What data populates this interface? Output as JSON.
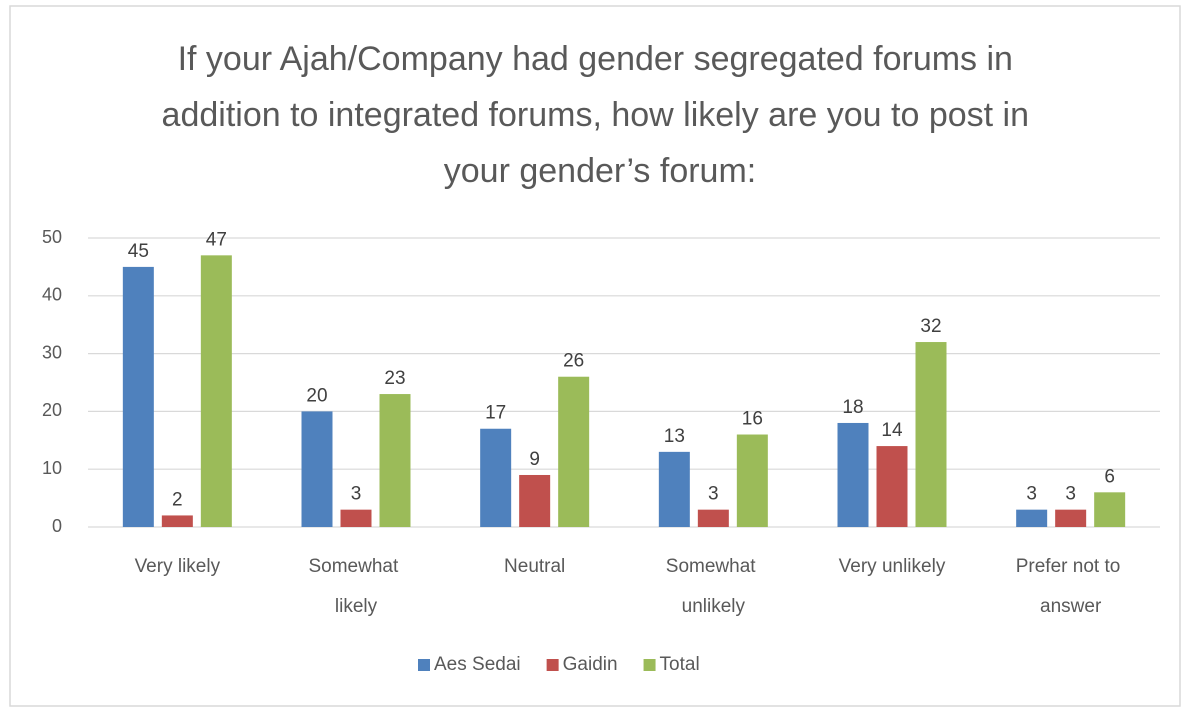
{
  "chart_data": {
    "type": "bar",
    "title": "If your Ajah/Company had gender segregated forums in addition to integrated forums, how likely are you to post in your gender’s forum:",
    "categories": [
      "Very likely",
      "Somewhat likely",
      "Neutral",
      "Somewhat unlikely",
      "Very unlikely",
      "Prefer not to answer"
    ],
    "series": [
      {
        "name": "Aes Sedai",
        "color": "#4f81bd",
        "values": [
          45,
          20,
          17,
          13,
          18,
          3
        ]
      },
      {
        "name": "Gaidin",
        "color": "#c0504d",
        "values": [
          2,
          3,
          9,
          3,
          14,
          3
        ]
      },
      {
        "name": "Total",
        "color": "#9bbb59",
        "values": [
          47,
          23,
          26,
          16,
          32,
          6
        ]
      }
    ],
    "ylim": [
      0,
      50
    ],
    "yticks": [
      0,
      10,
      20,
      30,
      40,
      50
    ],
    "grid": true,
    "legend": "bottom"
  }
}
